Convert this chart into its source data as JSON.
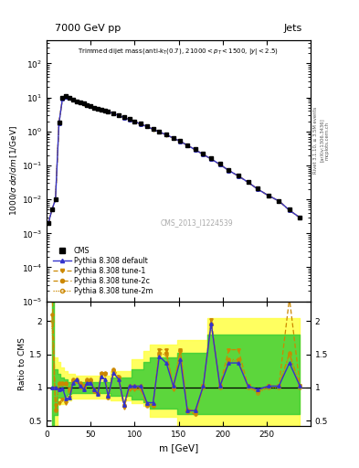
{
  "title_main": "7000 GeV pp",
  "title_right": "Jets",
  "xlabel": "m [GeV]",
  "ylabel_main": "1000/σ dσ/dm [1/GeV]",
  "ylabel_ratio": "Ratio to CMS",
  "watermark": "CMS_2013_I1224539",
  "color_default": "#3333cc",
  "color_tune1": "#cc8800",
  "color_tune2c": "#cc8800",
  "color_tune2m": "#cc8800",
  "band_green": "#33cc33",
  "band_yellow": "#ffff44",
  "ylim_main": [
    1e-05,
    500
  ],
  "ylim_ratio": [
    0.42,
    2.3
  ],
  "xlim": [
    0,
    300
  ],
  "m_values": [
    2,
    6,
    10,
    14,
    18,
    22,
    26,
    30,
    34,
    38,
    42,
    46,
    50,
    54,
    58,
    62,
    66,
    70,
    76,
    82,
    88,
    94,
    100,
    107,
    114,
    121,
    128,
    136,
    144,
    152,
    160,
    169,
    178,
    187,
    197,
    207,
    218,
    229,
    240,
    252,
    264,
    276,
    288
  ],
  "cms_values": [
    0.002,
    0.005,
    0.01,
    1.8,
    9.5,
    10.8,
    10.0,
    8.8,
    7.8,
    7.2,
    6.6,
    6.1,
    5.6,
    5.1,
    4.8,
    4.5,
    4.2,
    3.9,
    3.4,
    3.0,
    2.6,
    2.3,
    2.0,
    1.7,
    1.45,
    1.2,
    1.0,
    0.82,
    0.66,
    0.53,
    0.4,
    0.3,
    0.22,
    0.16,
    0.11,
    0.073,
    0.05,
    0.033,
    0.021,
    0.013,
    0.009,
    0.005,
    0.003
  ],
  "pythia_default_values": [
    0.002,
    0.005,
    0.01,
    1.75,
    9.4,
    10.7,
    10.0,
    8.8,
    7.75,
    7.15,
    6.55,
    6.05,
    5.55,
    5.05,
    4.75,
    4.45,
    4.15,
    3.85,
    3.35,
    2.95,
    2.55,
    2.25,
    1.95,
    1.65,
    1.4,
    1.16,
    0.97,
    0.8,
    0.64,
    0.51,
    0.39,
    0.29,
    0.21,
    0.155,
    0.107,
    0.071,
    0.049,
    0.032,
    0.02,
    0.013,
    0.009,
    0.0048,
    0.0029
  ],
  "ratio_m": [
    6,
    10,
    14,
    18,
    22,
    26,
    30,
    34,
    38,
    42,
    46,
    50,
    54,
    58,
    62,
    66,
    70,
    76,
    82,
    88,
    94,
    100,
    107,
    114,
    121,
    128,
    136,
    144,
    152,
    160,
    169,
    178,
    187,
    197,
    207,
    218,
    229,
    240,
    252,
    264,
    276,
    288
  ],
  "ratio_default": [
    1.0,
    1.0,
    0.97,
    0.99,
    0.83,
    0.84,
    1.07,
    1.12,
    1.02,
    0.97,
    1.07,
    1.07,
    0.97,
    0.9,
    1.17,
    1.12,
    0.87,
    1.22,
    1.12,
    0.74,
    1.02,
    1.02,
    1.02,
    0.77,
    0.77,
    1.47,
    1.37,
    1.02,
    1.42,
    0.65,
    0.65,
    1.02,
    1.97,
    1.02,
    1.37,
    1.37,
    1.02,
    0.97,
    1.02,
    1.02,
    1.37,
    1.02
  ],
  "ratio_tune1": [
    2.6,
    0.72,
    0.77,
    0.82,
    0.77,
    0.84,
    1.1,
    1.1,
    1.0,
    0.97,
    1.1,
    1.1,
    0.94,
    0.9,
    1.2,
    1.2,
    0.84,
    1.24,
    1.1,
    0.7,
    0.97,
    0.97,
    0.97,
    0.74,
    0.74,
    1.57,
    1.57,
    0.97,
    1.57,
    0.62,
    0.6,
    1.02,
    2.02,
    1.02,
    1.57,
    1.57,
    1.02,
    0.94,
    1.02,
    1.02,
    2.35,
    1.02
  ],
  "ratio_tune2c": [
    2.1,
    0.67,
    1.07,
    1.07,
    1.07,
    0.97,
    1.12,
    1.12,
    1.07,
    1.02,
    1.12,
    1.12,
    0.97,
    0.92,
    1.22,
    1.22,
    0.87,
    1.27,
    1.17,
    0.74,
    1.02,
    1.02,
    1.02,
    0.74,
    0.74,
    1.52,
    1.52,
    1.02,
    1.57,
    0.67,
    0.65,
    1.02,
    1.97,
    1.02,
    1.42,
    1.42,
    1.02,
    0.94,
    1.02,
    1.02,
    1.52,
    1.02
  ],
  "ratio_tune2m": [
    2.0,
    0.65,
    1.05,
    1.05,
    1.05,
    0.95,
    1.1,
    1.1,
    1.05,
    1.0,
    1.1,
    1.1,
    0.95,
    0.9,
    1.2,
    1.2,
    0.85,
    1.25,
    1.15,
    0.72,
    1.0,
    1.0,
    1.0,
    0.72,
    0.72,
    1.5,
    1.5,
    1.0,
    1.55,
    0.65,
    0.6,
    1.0,
    1.95,
    1.0,
    1.4,
    1.4,
    1.0,
    0.92,
    1.0,
    1.0,
    1.5,
    1.0
  ],
  "yellow_lower": [
    0.42,
    0.42,
    0.75,
    0.75,
    0.78,
    0.8,
    0.83,
    0.83,
    0.83,
    0.83,
    0.83,
    0.83,
    0.83,
    0.83,
    0.83,
    0.83,
    0.83,
    0.8,
    0.8,
    0.8,
    0.8,
    0.77,
    0.77,
    0.72,
    0.55,
    0.55,
    0.55,
    0.55,
    0.42,
    0.42,
    0.42,
    0.42,
    0.42,
    0.42,
    0.42,
    0.42,
    0.42,
    0.42,
    0.42,
    0.42,
    0.42,
    0.42
  ],
  "yellow_upper": [
    2.3,
    1.45,
    1.38,
    1.3,
    1.25,
    1.2,
    1.2,
    1.18,
    1.18,
    1.18,
    1.18,
    1.18,
    1.18,
    1.18,
    1.18,
    1.18,
    1.18,
    1.25,
    1.25,
    1.25,
    1.25,
    1.42,
    1.42,
    1.55,
    1.65,
    1.65,
    1.65,
    1.65,
    1.72,
    1.72,
    1.72,
    1.72,
    2.05,
    2.05,
    2.05,
    2.05,
    2.05,
    2.05,
    2.05,
    2.05,
    2.05,
    2.05
  ],
  "green_lower": [
    0.42,
    0.58,
    0.85,
    0.85,
    0.88,
    0.9,
    0.92,
    0.92,
    0.92,
    0.92,
    0.92,
    0.92,
    0.92,
    0.92,
    0.92,
    0.92,
    0.92,
    0.88,
    0.88,
    0.88,
    0.88,
    0.82,
    0.82,
    0.78,
    0.68,
    0.68,
    0.68,
    0.68,
    0.6,
    0.6,
    0.6,
    0.6,
    0.6,
    0.6,
    0.6,
    0.6,
    0.6,
    0.6,
    0.6,
    0.6,
    0.6,
    0.6
  ],
  "green_upper": [
    2.3,
    1.28,
    1.2,
    1.15,
    1.12,
    1.08,
    1.08,
    1.08,
    1.08,
    1.08,
    1.08,
    1.08,
    1.08,
    1.08,
    1.08,
    1.08,
    1.08,
    1.15,
    1.15,
    1.15,
    1.15,
    1.28,
    1.28,
    1.38,
    1.45,
    1.45,
    1.45,
    1.45,
    1.52,
    1.52,
    1.52,
    1.52,
    1.8,
    1.8,
    1.8,
    1.8,
    1.8,
    1.8,
    1.8,
    1.8,
    1.8,
    1.8
  ]
}
